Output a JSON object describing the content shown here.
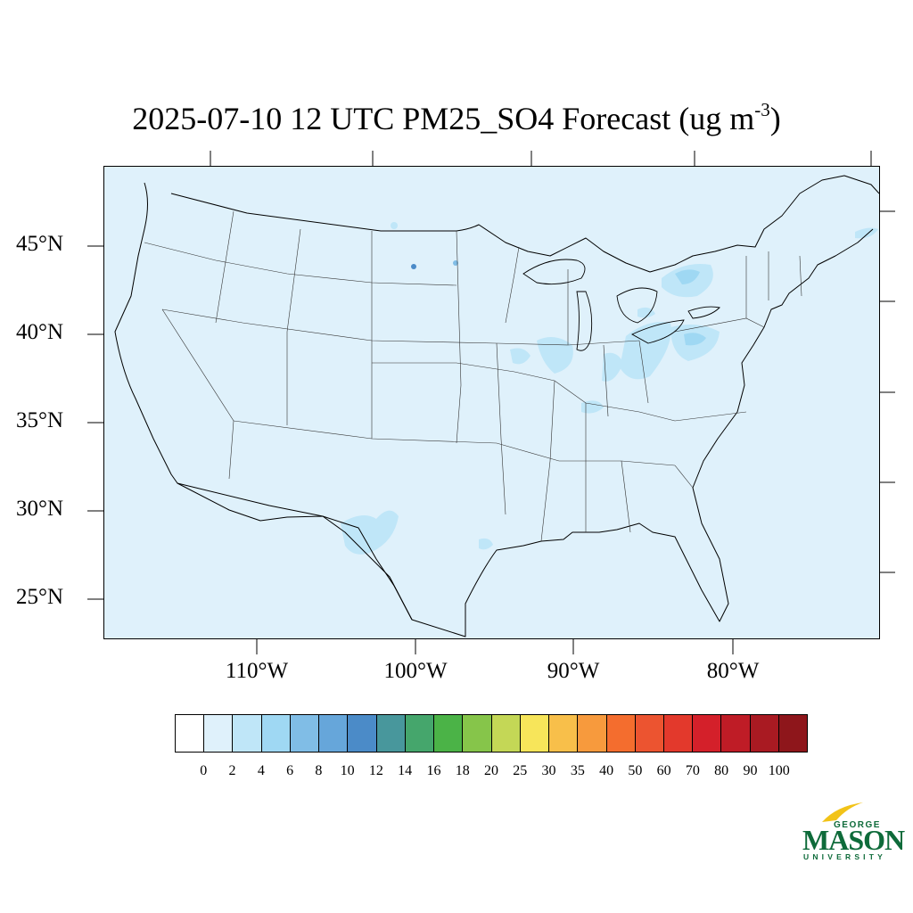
{
  "title": {
    "main": "2025-07-10 12 UTC PM25_SO4 Forecast (ug m",
    "superscript": "-3",
    "close": ")"
  },
  "map": {
    "background_color": "#dff1fb",
    "lat_labels": [
      "45°N",
      "40°N",
      "35°N",
      "30°N",
      "25°N"
    ],
    "lon_labels": [
      "110°W",
      "100°W",
      "90°W",
      "80°W"
    ]
  },
  "colorbar": {
    "labels": [
      "0",
      "2",
      "4",
      "6",
      "8",
      "10",
      "12",
      "14",
      "16",
      "18",
      "20",
      "25",
      "30",
      "35",
      "40",
      "50",
      "60",
      "70",
      "80",
      "90",
      "100"
    ],
    "colors": [
      "#ffffff",
      "#dff1fb",
      "#bfe6f8",
      "#9fd8f3",
      "#80bde6",
      "#66a6da",
      "#4b8bc8",
      "#48979c",
      "#45a66c",
      "#4bb347",
      "#86c54a",
      "#c4d756",
      "#f7e55a",
      "#f8bf4a",
      "#f79a3d",
      "#f46d2e",
      "#ec5430",
      "#e3392c",
      "#d4202a",
      "#bf1c26",
      "#a91a22",
      "#8e161b"
    ]
  },
  "logo": {
    "george": "GEORGE",
    "mason": "MASON",
    "university": "UNIVERSITY",
    "green": "#0e6b3a",
    "gold": "#f2c318"
  }
}
